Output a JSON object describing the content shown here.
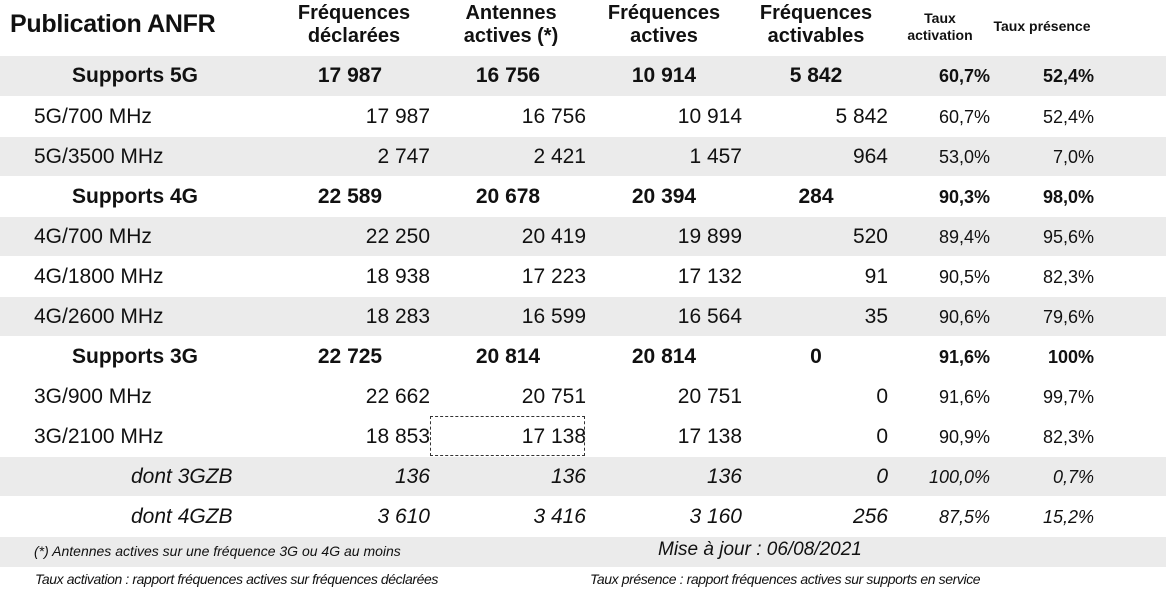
{
  "header": {
    "title": "Publication ANFR",
    "col1": [
      "Fréquences",
      "déclarées"
    ],
    "col2": [
      "Antennes",
      "actives (*)"
    ],
    "col3": [
      "Fréquences",
      "actives"
    ],
    "col4": [
      "Fréquences",
      "activables"
    ],
    "col5": [
      "Taux",
      "activation"
    ],
    "col6": "Taux présence"
  },
  "rows": [
    {
      "label": "Supports 5G",
      "v1": "17 987",
      "v2": "16 756",
      "v3": "10 914",
      "v4": "5 842",
      "v5": "60,7%",
      "v6": "52,4%"
    },
    {
      "label": "5G/700 MHz",
      "v1": "17 987",
      "v2": "16 756",
      "v3": "10 914",
      "v4": "5 842",
      "v5": "60,7%",
      "v6": "52,4%"
    },
    {
      "label": "5G/3500 MHz",
      "v1": "2 747",
      "v2": "2 421",
      "v3": "1 457",
      "v4": "964",
      "v5": "53,0%",
      "v6": "7,0%"
    },
    {
      "label": "Supports 4G",
      "v1": "22 589",
      "v2": "20 678",
      "v3": "20 394",
      "v4": "284",
      "v5": "90,3%",
      "v6": "98,0%"
    },
    {
      "label": "4G/700 MHz",
      "v1": "22 250",
      "v2": "20 419",
      "v3": "19 899",
      "v4": "520",
      "v5": "89,4%",
      "v6": "95,6%"
    },
    {
      "label": "4G/1800 MHz",
      "v1": "18 938",
      "v2": "17 223",
      "v3": "17 132",
      "v4": "91",
      "v5": "90,5%",
      "v6": "82,3%"
    },
    {
      "label": "4G/2600 MHz",
      "v1": "18 283",
      "v2": "16 599",
      "v3": "16 564",
      "v4": "35",
      "v5": "90,6%",
      "v6": "79,6%"
    },
    {
      "label": "Supports 3G",
      "v1": "22 725",
      "v2": "20 814",
      "v3": "20 814",
      "v4": "0",
      "v5": "91,6%",
      "v6": "100%"
    },
    {
      "label": "3G/900 MHz",
      "v1": "22 662",
      "v2": "20 751",
      "v3": "20 751",
      "v4": "0",
      "v5": "91,6%",
      "v6": "99,7%"
    },
    {
      "label": "3G/2100 MHz",
      "v1": "18 853",
      "v2": "17 138",
      "v3": "17 138",
      "v4": "0",
      "v5": "90,9%",
      "v6": "82,3%"
    },
    {
      "label": "dont 3GZB",
      "v1": "136",
      "v2": "136",
      "v3": "136",
      "v4": "0",
      "v5": "100,0%",
      "v6": "0,7%"
    },
    {
      "label": "dont 4GZB",
      "v1": "3 610",
      "v2": "3 416",
      "v3": "3 160",
      "v4": "256",
      "v5": "87,5%",
      "v6": "15,2%"
    }
  ],
  "footer": {
    "note": "(*) Antennes actives sur une fréquence 3G ou 4G au moins",
    "update": "Mise à jour : 06/08/2021",
    "def_activation": "Taux activation : rapport fréquences actives sur fréquences déclarées",
    "def_presence": "Taux présence : rapport fréquences actives sur supports en service"
  },
  "colors": {
    "row_gray": "#ebebeb",
    "text": "#111111"
  }
}
